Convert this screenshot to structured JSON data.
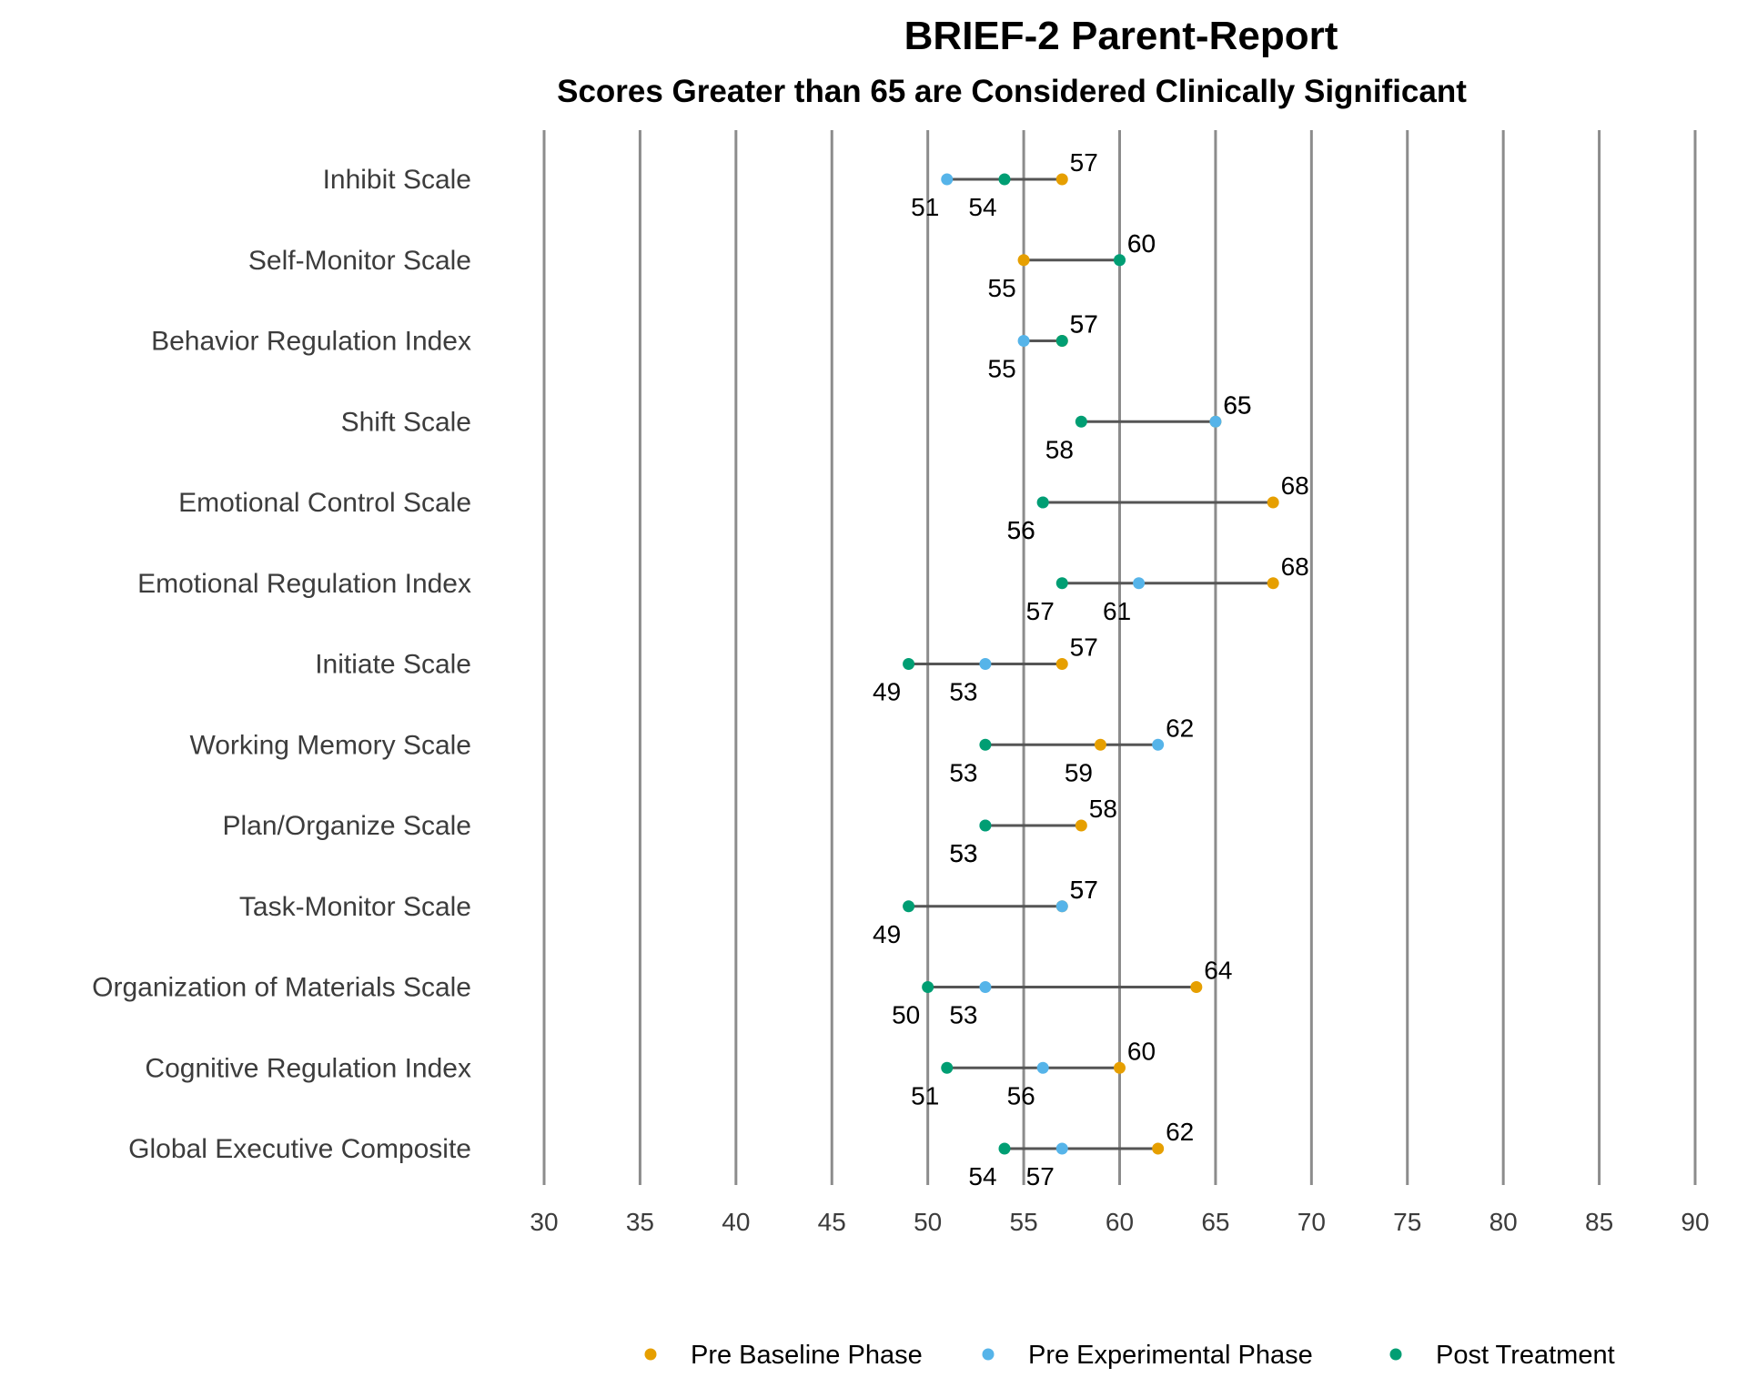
{
  "chart_data": {
    "type": "dumbbell",
    "title": "BRIEF-2 Parent-Report",
    "subtitle": "Scores Greater than 65 are Considered Clinically Significant",
    "xlim": [
      30,
      90
    ],
    "x_ticks": [
      30,
      35,
      40,
      45,
      50,
      55,
      60,
      65,
      70,
      75,
      80,
      85,
      90
    ],
    "grid": "vertical",
    "legend_position": "bottom",
    "categories": [
      "Inhibit Scale",
      "Self-Monitor Scale",
      "Behavior Regulation Index",
      "Shift Scale",
      "Emotional Control Scale",
      "Emotional Regulation Index",
      "Initiate Scale",
      "Working Memory Scale",
      "Plan/Organize Scale",
      "Task-Monitor Scale",
      "Organization of Materials Scale",
      "Cognitive Regulation Index",
      "Global Executive Composite"
    ],
    "series": [
      {
        "name": "Pre Baseline Phase",
        "color": "#E69F00",
        "values": [
          57,
          55,
          57,
          65,
          68,
          68,
          57,
          59,
          58,
          57,
          64,
          60,
          62
        ]
      },
      {
        "name": "Pre Experimental Phase",
        "color": "#56B4E9",
        "values": [
          51,
          60,
          55,
          65,
          56,
          61,
          53,
          62,
          53,
          57,
          53,
          56,
          57
        ]
      },
      {
        "name": "Post Treatment",
        "color": "#009E73",
        "values": [
          54,
          60,
          57,
          58,
          56,
          57,
          49,
          53,
          53,
          49,
          50,
          51,
          54
        ]
      }
    ]
  }
}
